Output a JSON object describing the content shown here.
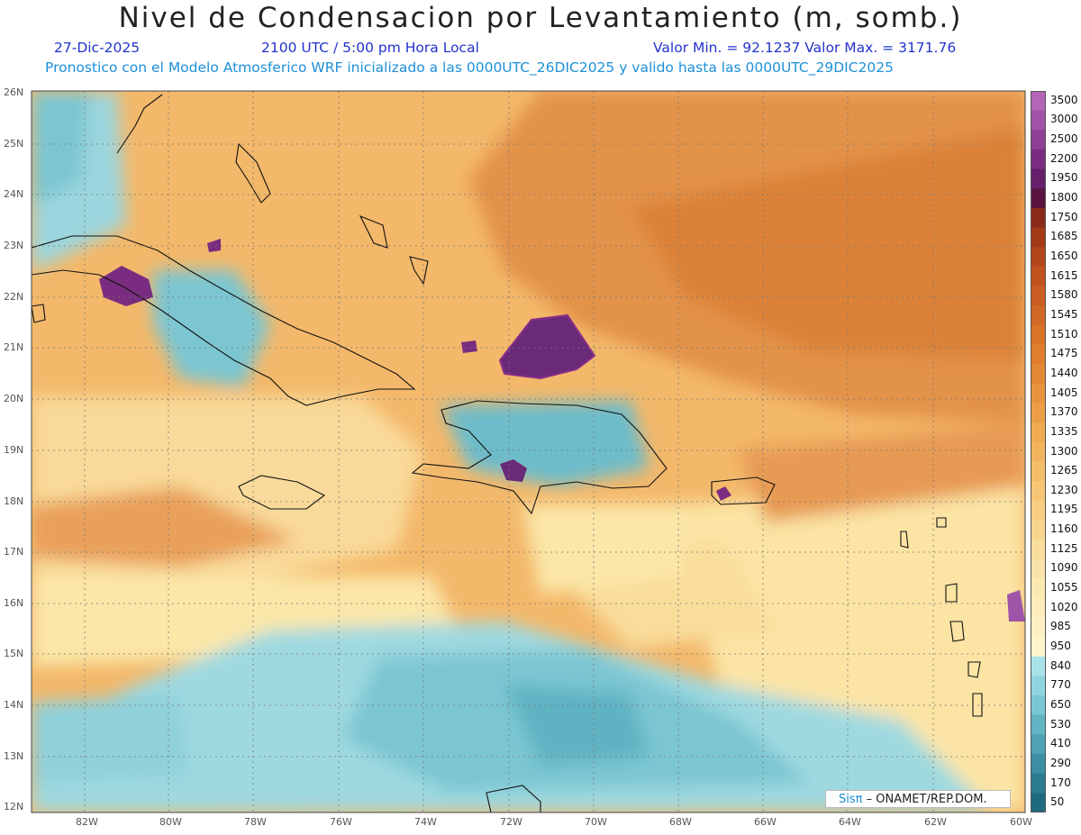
{
  "title": "Nivel de Condensacion por Levantamiento (m, somb.)",
  "date": "27-Dic-2025",
  "time": "2100 UTC / 5:00 pm Hora Local",
  "minmax": "Valor Min. = 92.1237   Valor Max. = 3171.76",
  "description": "Pronostico con el Modelo Atmosferico WRF inicializado a las 0000UTC_26DIC2025 y valido hasta las  0000UTC_29DIC2025",
  "credit_brand": "Sisπ",
  "credit_text": "– ONAMET/REP.DOM.",
  "lat_labels": [
    "26N",
    "25N",
    "24N",
    "23N",
    "22N",
    "21N",
    "20N",
    "19N",
    "18N",
    "17N",
    "16N",
    "15N",
    "14N",
    "13N",
    "12N"
  ],
  "lon_labels": [
    "82W",
    "80W",
    "78W",
    "76W",
    "74W",
    "72W",
    "70W",
    "68W",
    "66W",
    "64W",
    "62W",
    "60W"
  ],
  "colorbar": {
    "labels": [
      "3500",
      "3000",
      "2500",
      "2200",
      "1950",
      "1800",
      "1750",
      "1685",
      "1650",
      "1615",
      "1580",
      "1545",
      "1510",
      "1475",
      "1440",
      "1405",
      "1370",
      "1335",
      "1300",
      "1265",
      "1230",
      "1195",
      "1160",
      "1125",
      "1090",
      "1055",
      "1020",
      "985",
      "950",
      "840",
      "770",
      "650",
      "530",
      "410",
      "290",
      "170",
      "50"
    ],
    "colors": [
      "#b565b5",
      "#a054a8",
      "#8e3f96",
      "#7a2d80",
      "#661f6a",
      "#5a1440",
      "#8b2a18",
      "#a23a18",
      "#b3461c",
      "#bf521f",
      "#c95d22",
      "#d16825",
      "#d87328",
      "#de7e2e",
      "#e38935",
      "#e8943d",
      "#ec9f47",
      "#efaa52",
      "#f2b45d",
      "#f4bd69",
      "#f6c676",
      "#f7ce83",
      "#f8d690",
      "#f9dd9c",
      "#faE3a8",
      "#fbe9b2",
      "#fcedba",
      "#fdf1c3",
      "#fef5cc",
      "#a9e3ea",
      "#8fd4df",
      "#79c5d2",
      "#62b4c3",
      "#4ea2b3",
      "#3c8fa2",
      "#2c7c90",
      "#1f6a7e"
    ]
  }
}
